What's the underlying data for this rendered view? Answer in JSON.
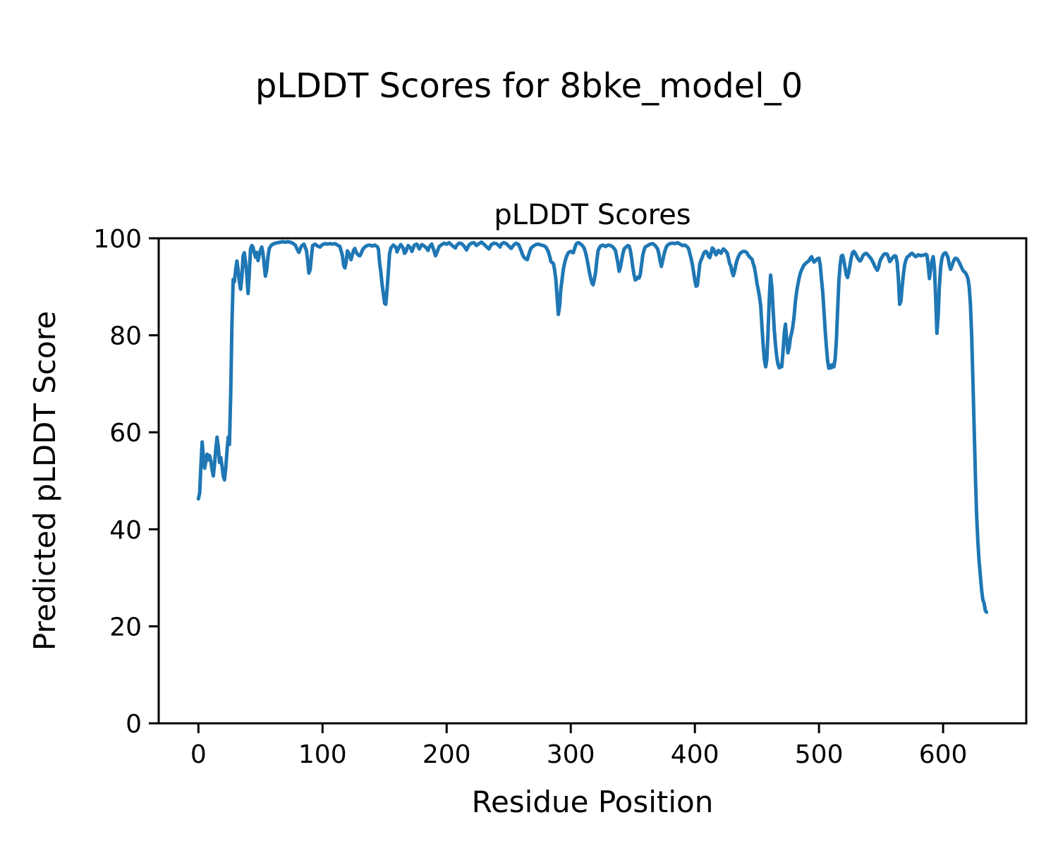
{
  "figure": {
    "suptitle": "pLDDT Scores for 8bke_model_0",
    "background_color": "#ffffff",
    "spine_color": "#000000",
    "text_color": "#000000"
  },
  "chart_data": {
    "type": "line",
    "title": "pLDDT Scores",
    "xlabel": "Residue Position",
    "ylabel": "Predicted pLDDT Score",
    "xlim": [
      -32,
      667
    ],
    "ylim": [
      0,
      100
    ],
    "xticks": [
      0,
      100,
      200,
      300,
      400,
      500,
      600
    ],
    "yticks": [
      0,
      20,
      40,
      60,
      80,
      100
    ],
    "grid": false,
    "legend_position": "none",
    "line_color": "#1f77b4",
    "series": [
      {
        "name": "pLDDT",
        "x": [
          0,
          1,
          2,
          3,
          4,
          5,
          6,
          7,
          8,
          9,
          10,
          11,
          12,
          13,
          14,
          15,
          16,
          17,
          18,
          19,
          20,
          21,
          22,
          23,
          24,
          25,
          26,
          27,
          28,
          29,
          30,
          31,
          32,
          33,
          34,
          35,
          36,
          37,
          38,
          39,
          40,
          41,
          42,
          43,
          44,
          45,
          46,
          47,
          48,
          49,
          50,
          51,
          52,
          53,
          54,
          55,
          56,
          57,
          58,
          59,
          60,
          62,
          64,
          66,
          68,
          70,
          72,
          74,
          76,
          78,
          80,
          81,
          82,
          83,
          85,
          87,
          88,
          89,
          90,
          91,
          92,
          94,
          96,
          98,
          100,
          102,
          104,
          106,
          108,
          110,
          112,
          114,
          116,
          117,
          118,
          119,
          120,
          121,
          122,
          123,
          124,
          125,
          126,
          127,
          128,
          129,
          130,
          131,
          132,
          133,
          134,
          136,
          138,
          140,
          142,
          144,
          145,
          146,
          147,
          148,
          149,
          150,
          151,
          152,
          153,
          154,
          155,
          157,
          159,
          160,
          161,
          163,
          165,
          166,
          167,
          169,
          171,
          172,
          174,
          176,
          178,
          180,
          182,
          184,
          185,
          186,
          188,
          190,
          191,
          192,
          194,
          196,
          198,
          200,
          202,
          204,
          206,
          207,
          208,
          210,
          212,
          214,
          216,
          218,
          220,
          222,
          224,
          226,
          228,
          230,
          232,
          234,
          236,
          238,
          240,
          242,
          243,
          244,
          246,
          248,
          250,
          252,
          254,
          256,
          258,
          260,
          261,
          262,
          263,
          264,
          265,
          266,
          267,
          268,
          270,
          272,
          274,
          276,
          278,
          280,
          282,
          283,
          284,
          285,
          286,
          287,
          288,
          289,
          290,
          291,
          292,
          293,
          294,
          295,
          296,
          297,
          298,
          299,
          300,
          302,
          303,
          304,
          305,
          306,
          307,
          308,
          309,
          310,
          311,
          312,
          313,
          314,
          315,
          316,
          317,
          318,
          319,
          320,
          321,
          322,
          323,
          324,
          326,
          328,
          330,
          332,
          334,
          336,
          337,
          338,
          339,
          340,
          341,
          342,
          343,
          344,
          345,
          346,
          347,
          348,
          349,
          350,
          351,
          352,
          353,
          354,
          355,
          356,
          357,
          358,
          359,
          360,
          362,
          364,
          366,
          368,
          370,
          371,
          372,
          373,
          374,
          375,
          376,
          377,
          378,
          380,
          382,
          384,
          386,
          388,
          390,
          392,
          394,
          395,
          396,
          397,
          398,
          399,
          400,
          401,
          402,
          403,
          404,
          405,
          406,
          407,
          408,
          409,
          410,
          411,
          412,
          413,
          414,
          415,
          416,
          417,
          418,
          419,
          420,
          421,
          422,
          423,
          424,
          425,
          426,
          427,
          428,
          429,
          430,
          431,
          432,
          433,
          434,
          435,
          436,
          437,
          438,
          439,
          440,
          441,
          442,
          443,
          444,
          445,
          446,
          447,
          448,
          449,
          450,
          451,
          452,
          453,
          454,
          455,
          456,
          457,
          458,
          459,
          460,
          461,
          462,
          463,
          464,
          465,
          466,
          467,
          468,
          469,
          470,
          471,
          472,
          473,
          474,
          475,
          476,
          477,
          478,
          479,
          480,
          481,
          482,
          483,
          484,
          485,
          486,
          488,
          490,
          492,
          493,
          494,
          495,
          496,
          497,
          498,
          499,
          500,
          501,
          502,
          503,
          504,
          505,
          506,
          507,
          508,
          509,
          510,
          511,
          512,
          513,
          514,
          515,
          516,
          517,
          518,
          519,
          520,
          521,
          522,
          523,
          524,
          525,
          526,
          527,
          528,
          529,
          530,
          531,
          532,
          533,
          534,
          535,
          536,
          537,
          538,
          539,
          540,
          541,
          542,
          543,
          544,
          545,
          546,
          547,
          548,
          549,
          550,
          551,
          552,
          553,
          554,
          555,
          556,
          557,
          558,
          559,
          560,
          561,
          562,
          563,
          564,
          565,
          566,
          567,
          568,
          569,
          570,
          571,
          572,
          573,
          574,
          575,
          576,
          577,
          578,
          579,
          580,
          581,
          582,
          583,
          584,
          585,
          586,
          587,
          588,
          589,
          590,
          591,
          592,
          593,
          594,
          595,
          596,
          597,
          598,
          599,
          600,
          601,
          602,
          603,
          604,
          605,
          606,
          607,
          608,
          609,
          610,
          611,
          612,
          613,
          614,
          615,
          616,
          617,
          618,
          619,
          620,
          621,
          622,
          623,
          624,
          625,
          626,
          627,
          628,
          629,
          630,
          631,
          632,
          633,
          634,
          635
        ],
        "y": [
          46.3,
          47.5,
          53,
          58,
          55,
          52.6,
          54,
          55.5,
          54.3,
          55.2,
          54.2,
          52.3,
          51,
          53.5,
          56.5,
          59,
          57,
          53.8,
          54.8,
          53.1,
          51,
          50.2,
          52.5,
          56.1,
          59,
          57.5,
          68,
          82,
          91.5,
          91,
          93.5,
          95.3,
          93.5,
          91,
          89.5,
          92,
          96.4,
          97,
          95,
          92.5,
          88.6,
          93,
          97.8,
          98.5,
          98.2,
          97,
          96.1,
          97.1,
          95.4,
          96.5,
          97.5,
          98.2,
          97,
          94.5,
          92.2,
          93.5,
          96,
          97.8,
          98.3,
          98.6,
          98.8,
          99,
          99.1,
          99.2,
          99.3,
          99.2,
          99.3,
          99.2,
          99,
          98.6,
          97.5,
          97.1,
          97.8,
          98.4,
          98.8,
          97.5,
          95.4,
          92.8,
          93.5,
          96,
          98.5,
          98.8,
          98.4,
          98.2,
          98.7,
          98.9,
          98.8,
          98.9,
          98.8,
          98.9,
          98.6,
          98.3,
          96.5,
          94.5,
          93.9,
          95,
          97.4,
          97,
          96.2,
          95.6,
          96.6,
          97.5,
          97.9,
          97.2,
          96.8,
          96.5,
          96.4,
          96.8,
          97.5,
          97.9,
          98.2,
          98.5,
          98.6,
          98.4,
          98.6,
          98.3,
          97.8,
          94.9,
          93,
          90.5,
          88.6,
          86.6,
          86.4,
          89.5,
          92.9,
          96.8,
          98,
          98.6,
          98.2,
          97.2,
          97.8,
          98.7,
          98,
          96.9,
          97.2,
          98.5,
          98,
          97.3,
          98.6,
          98.8,
          97.8,
          98.7,
          98.4,
          97.9,
          97.5,
          98.2,
          98.8,
          97.3,
          96.4,
          97,
          98.3,
          98.7,
          99,
          98.8,
          99.1,
          98.6,
          98.2,
          98,
          98.5,
          99,
          98.9,
          98.4,
          97.6,
          98.6,
          99,
          99.1,
          98.5,
          98.9,
          99.2,
          98.8,
          98.3,
          97.8,
          98.7,
          99,
          98.9,
          98.5,
          98.2,
          98.8,
          99.1,
          98.9,
          98.4,
          97.9,
          98.6,
          99,
          98.7,
          97.5,
          96.7,
          96.2,
          95.9,
          95.7,
          95.6,
          96.5,
          97.3,
          98,
          98.4,
          98.7,
          98.8,
          98.6,
          98.5,
          98.2,
          97.2,
          96.3,
          95.2,
          95,
          94.8,
          93.5,
          91.5,
          88,
          84.3,
          86,
          89.5,
          91.5,
          93.5,
          94.8,
          95.8,
          96.5,
          97,
          97.2,
          97.3,
          97,
          97.8,
          98.6,
          99,
          99.1,
          99,
          98.8,
          98.6,
          98.3,
          97.8,
          97,
          95.8,
          94.5,
          93,
          91.8,
          90.8,
          90.4,
          91.5,
          93,
          95.5,
          97.4,
          98,
          98.4,
          98.6,
          98.3,
          98.6,
          98.5,
          98.2,
          97.5,
          96.2,
          94.8,
          93.2,
          94,
          95.5,
          96.8,
          97.8,
          98.1,
          98.3,
          98.5,
          98.4,
          97.5,
          96,
          94,
          92.5,
          91.4,
          91.6,
          92,
          91.8,
          92.5,
          94.5,
          96.5,
          97.5,
          98.2,
          98.5,
          98.8,
          98.9,
          98.5,
          97.8,
          96.8,
          95.3,
          94.2,
          95.3,
          96.5,
          97.5,
          98.2,
          98.6,
          98.9,
          99,
          98.9,
          99.1,
          98.8,
          98.5,
          98.6,
          98.2,
          97.8,
          96.8,
          95.8,
          94.5,
          93,
          91.3,
          90.1,
          90.3,
          92.5,
          94.8,
          95.5,
          96.1,
          96.8,
          97.2,
          97.3,
          97,
          96.3,
          96,
          96.8,
          98,
          97.8,
          97.2,
          96.6,
          97,
          97.5,
          97.2,
          96.9,
          97.4,
          97.8,
          97.6,
          97.3,
          97,
          96,
          94.8,
          94.3,
          93,
          92.3,
          93.2,
          94.5,
          95.5,
          96.2,
          96.7,
          97,
          97.2,
          97.3,
          97.3,
          97.2,
          97,
          96.5,
          96.2,
          95.9,
          95.7,
          94.8,
          94,
          92.5,
          90.7,
          89.5,
          88,
          86.3,
          82,
          78,
          75,
          73.5,
          75,
          81,
          88,
          92.4,
          90,
          85.5,
          81,
          78,
          75.5,
          74,
          73.3,
          73.8,
          73.5,
          76.5,
          80.5,
          82.3,
          79,
          76.4,
          77.5,
          79.5,
          80.5,
          82,
          84,
          87,
          89,
          90.5,
          91.8,
          92.8,
          93.5,
          94.5,
          95,
          95.4,
          95.9,
          96.2,
          95.6,
          95.1,
          95.3,
          95.6,
          95.8,
          95.9,
          94.5,
          91.5,
          89,
          85,
          81,
          77.5,
          74.5,
          73.2,
          73.8,
          73.3,
          74,
          73.5,
          75,
          79,
          85,
          91,
          94.5,
          96.3,
          96.5,
          95.5,
          94,
          92.5,
          91.9,
          93,
          94.5,
          96,
          97,
          97.3,
          97,
          96.5,
          96,
          95.6,
          95.3,
          95.6,
          96.2,
          96.6,
          96.8,
          96.9,
          96.7,
          96.4,
          96.1,
          95.8,
          95.3,
          94.8,
          94.2,
          93.8,
          93.4,
          94,
          95.2,
          95.8,
          96.2,
          96.6,
          96.8,
          96.8,
          96.7,
          96,
          95.2,
          95.5,
          95.9,
          96.2,
          96.4,
          96.3,
          95,
          91.5,
          86.4,
          87,
          90,
          92.5,
          94.5,
          95.5,
          96.1,
          96.3,
          96.5,
          96.8,
          96.9,
          96.7,
          96.4,
          96.2,
          96.4,
          96.6,
          96.5,
          96.4,
          96.5,
          96.5,
          96.6,
          96.7,
          96.5,
          94.5,
          91.7,
          93.5,
          95.3,
          96.2,
          94,
          88,
          80.4,
          84,
          90,
          94,
          95.8,
          96.6,
          96.9,
          97,
          96.6,
          96,
          94.5,
          93.6,
          94.2,
          95,
          95.6,
          95.9,
          95.8,
          95.5,
          95,
          94.5,
          93.9,
          93.4,
          93.1,
          92.9,
          92.4,
          91.7,
          90,
          86.5,
          80,
          71,
          61,
          51,
          43,
          37.5,
          33.5,
          30.5,
          27.5,
          25.5,
          24.8,
          23.3,
          22.9
        ]
      }
    ]
  }
}
